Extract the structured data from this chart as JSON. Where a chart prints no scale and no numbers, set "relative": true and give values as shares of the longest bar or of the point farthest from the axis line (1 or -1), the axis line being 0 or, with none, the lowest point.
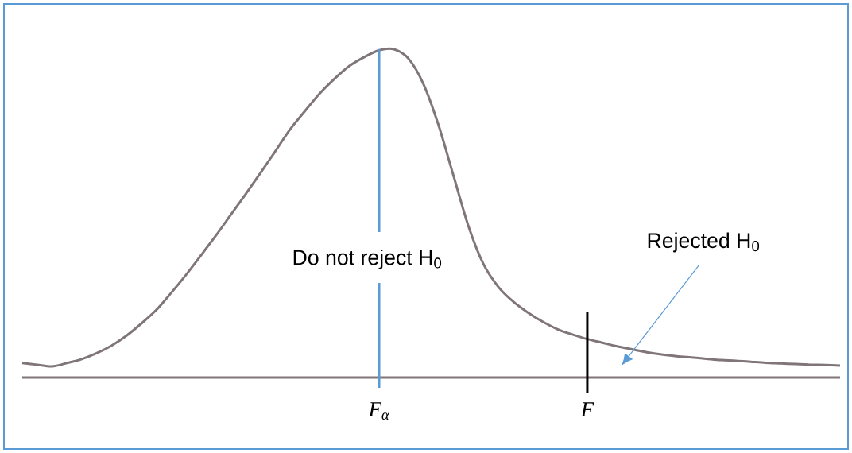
{
  "chart_data": {
    "type": "line",
    "relative": true,
    "categories": [
      null,
      null,
      null,
      null,
      null,
      null,
      null,
      null,
      null,
      null,
      null,
      null,
      null,
      null,
      null,
      null,
      null,
      null,
      null,
      null,
      null,
      null,
      null,
      null,
      "F$_{α}$",
      null,
      null,
      null,
      null,
      null,
      null,
      null,
      null,
      null,
      null,
      null,
      null,
      null,
      "F",
      null,
      null,
      null,
      null,
      null,
      null,
      null,
      null,
      null,
      null,
      null,
      null,
      null,
      null,
      null,
      null,
      null
    ],
    "series": [
      {
        "color": "#807579",
        "values": [
          0.044,
          0.039,
          0.034,
          0.044,
          0.056,
          0.074,
          0.097,
          0.127,
          0.164,
          0.205,
          0.257,
          0.312,
          0.371,
          0.431,
          0.494,
          0.557,
          0.622,
          0.688,
          0.755,
          0.811,
          0.865,
          0.91,
          0.949,
          0.976,
          0.997,
          1.0,
          0.97,
          0.892,
          0.768,
          0.615,
          0.462,
          0.347,
          0.277,
          0.232,
          0.198,
          0.17,
          0.147,
          0.131,
          0.117,
          0.106,
          0.095,
          0.086,
          0.077,
          0.07,
          0.065,
          0.061,
          0.057,
          0.053,
          0.051,
          0.048,
          0.045,
          0.043,
          0.041,
          0.039,
          0.038,
          0.036
        ]
      }
    ],
    "ref_lines": [
      {
        "axis": "x",
        "value": "F$_{α}$",
        "label": "Do not reject H$_{0}$",
        "color": "#5b9bd5"
      },
      {
        "axis": "x",
        "value": "F",
        "color": "#000000"
      }
    ],
    "annotations": [
      "Rejected H$_{0}$"
    ]
  }
}
